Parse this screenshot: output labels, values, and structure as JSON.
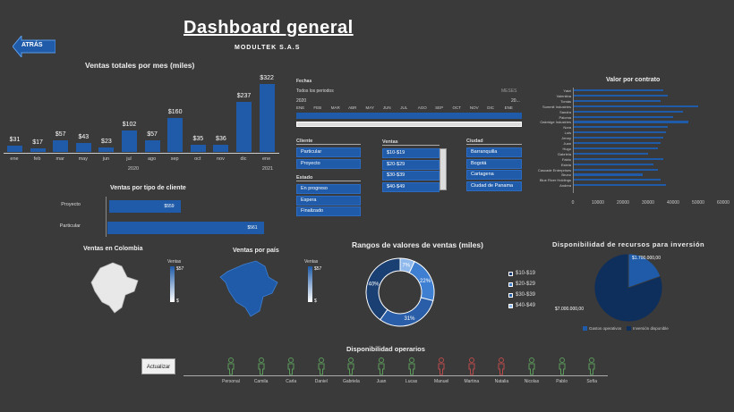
{
  "header": {
    "title": "Dashboard general",
    "subtitle": "MODULTEK S.A.S",
    "back_label": "ATRÁS"
  },
  "monthly": {
    "title": "Ventas totales por mes (miles)",
    "months": [
      "ene",
      "feb",
      "mar",
      "may",
      "jun",
      "jul",
      "ago",
      "sep",
      "oct",
      "nov",
      "dic",
      "ene"
    ],
    "values": [
      31,
      17,
      57,
      43,
      23,
      102,
      57,
      160,
      35,
      36,
      237,
      322
    ],
    "labels": [
      "$31",
      "$17",
      "$57",
      "$43",
      "$23",
      "$102",
      "$57",
      "$160",
      "$35",
      "$36",
      "$237",
      "$322"
    ],
    "years": [
      "2020",
      "2021"
    ]
  },
  "client_type": {
    "title": "Ventas por tipo de cliente",
    "rows": [
      {
        "name": "Proyecto",
        "value": "$559",
        "amount": 559
      },
      {
        "name": "Particular",
        "value": "$561",
        "amount": 561
      }
    ]
  },
  "timeline": {
    "title": "Fechas",
    "range_label": "Todos los periodos",
    "unit": "MESES",
    "year_left": "2020",
    "year_right": "20...",
    "months": [
      "ENE",
      "FEB",
      "MAR",
      "ABR",
      "MAY",
      "JUN",
      "JUL",
      "AGO",
      "SEP",
      "OCT",
      "NOV",
      "DIC",
      "ENE"
    ]
  },
  "slicers": {
    "cliente": {
      "title": "Cliente",
      "items": [
        "Particular",
        "Proyecto"
      ]
    },
    "estado": {
      "title": "Estado",
      "items": [
        "En progreso",
        "Espera",
        "Finalizado"
      ]
    },
    "ventas": {
      "title": "Ventas",
      "items": [
        "$10-$19",
        "$20-$29",
        "$30-$39",
        "$40-$49"
      ]
    },
    "ciudad": {
      "title": "Ciudad",
      "items": [
        "Barranquilla",
        "Bogotá",
        "Cartagena",
        "Ciudad de Panama"
      ]
    }
  },
  "contract": {
    "title": "Valor por contrato",
    "names": [
      "Yatzi",
      "Valentina",
      "Tomás",
      "Summit Industries",
      "Sandra",
      "Paloma",
      "Oakridge Industries",
      "Nora",
      "Luis",
      "Jenny",
      "Juan",
      "Hugo",
      "Gabriela",
      "Fabio",
      "Estela",
      "Cascade Enterprises",
      "Bruno",
      "Blue River Holdings",
      "Andrea"
    ],
    "values": [
      36000,
      38000,
      35000,
      50000,
      44000,
      40000,
      46000,
      38000,
      37000,
      36000,
      35000,
      34000,
      30000,
      36000,
      32000,
      34000,
      28000,
      35000,
      37000
    ],
    "ticks": [
      "0",
      "10000",
      "20000",
      "30000",
      "40000",
      "50000",
      "60000"
    ]
  },
  "maps": {
    "colombia_title": "Ventas en Colombia",
    "pais_title": "Ventas por país",
    "legend_max": "$57",
    "legend_min": "$"
  },
  "donut": {
    "title": "Rangos de valores de ventas (miles)",
    "slices": [
      {
        "label": "$10-$19",
        "value": 40,
        "color": "#1a3f73"
      },
      {
        "label": "$20-$29",
        "value": 22,
        "color": "#3e7fd1"
      },
      {
        "label": "$30-$39",
        "value": 31,
        "color": "#2a5ea8"
      },
      {
        "label": "$40-$49",
        "value": 7,
        "color": "#8fb8ec"
      }
    ],
    "slice_labels": [
      "40%",
      "22%",
      "31%",
      "7%"
    ]
  },
  "pie": {
    "title": "Disponibilidad de recursos para inversión",
    "values": [
      1700000,
      7000000
    ],
    "labels": [
      "$1.700.000,00",
      "$7.000.000,00"
    ],
    "legend": [
      "Gastos operativos",
      "Inversión disponible"
    ]
  },
  "operarios": {
    "title": "Disponibilidad operarios",
    "update_label": "Actualizar",
    "names": [
      "Personal",
      "Camila",
      "Carla",
      "Daniel",
      "Gabriela",
      "Juan",
      "Lucas",
      "Manuel",
      "Martina",
      "Natalia",
      "Nicolas",
      "Pablo",
      "Sofía"
    ],
    "status": [
      "green",
      "green",
      "green",
      "green",
      "green",
      "green",
      "green",
      "red",
      "red",
      "red",
      "green",
      "green",
      "green"
    ]
  }
}
